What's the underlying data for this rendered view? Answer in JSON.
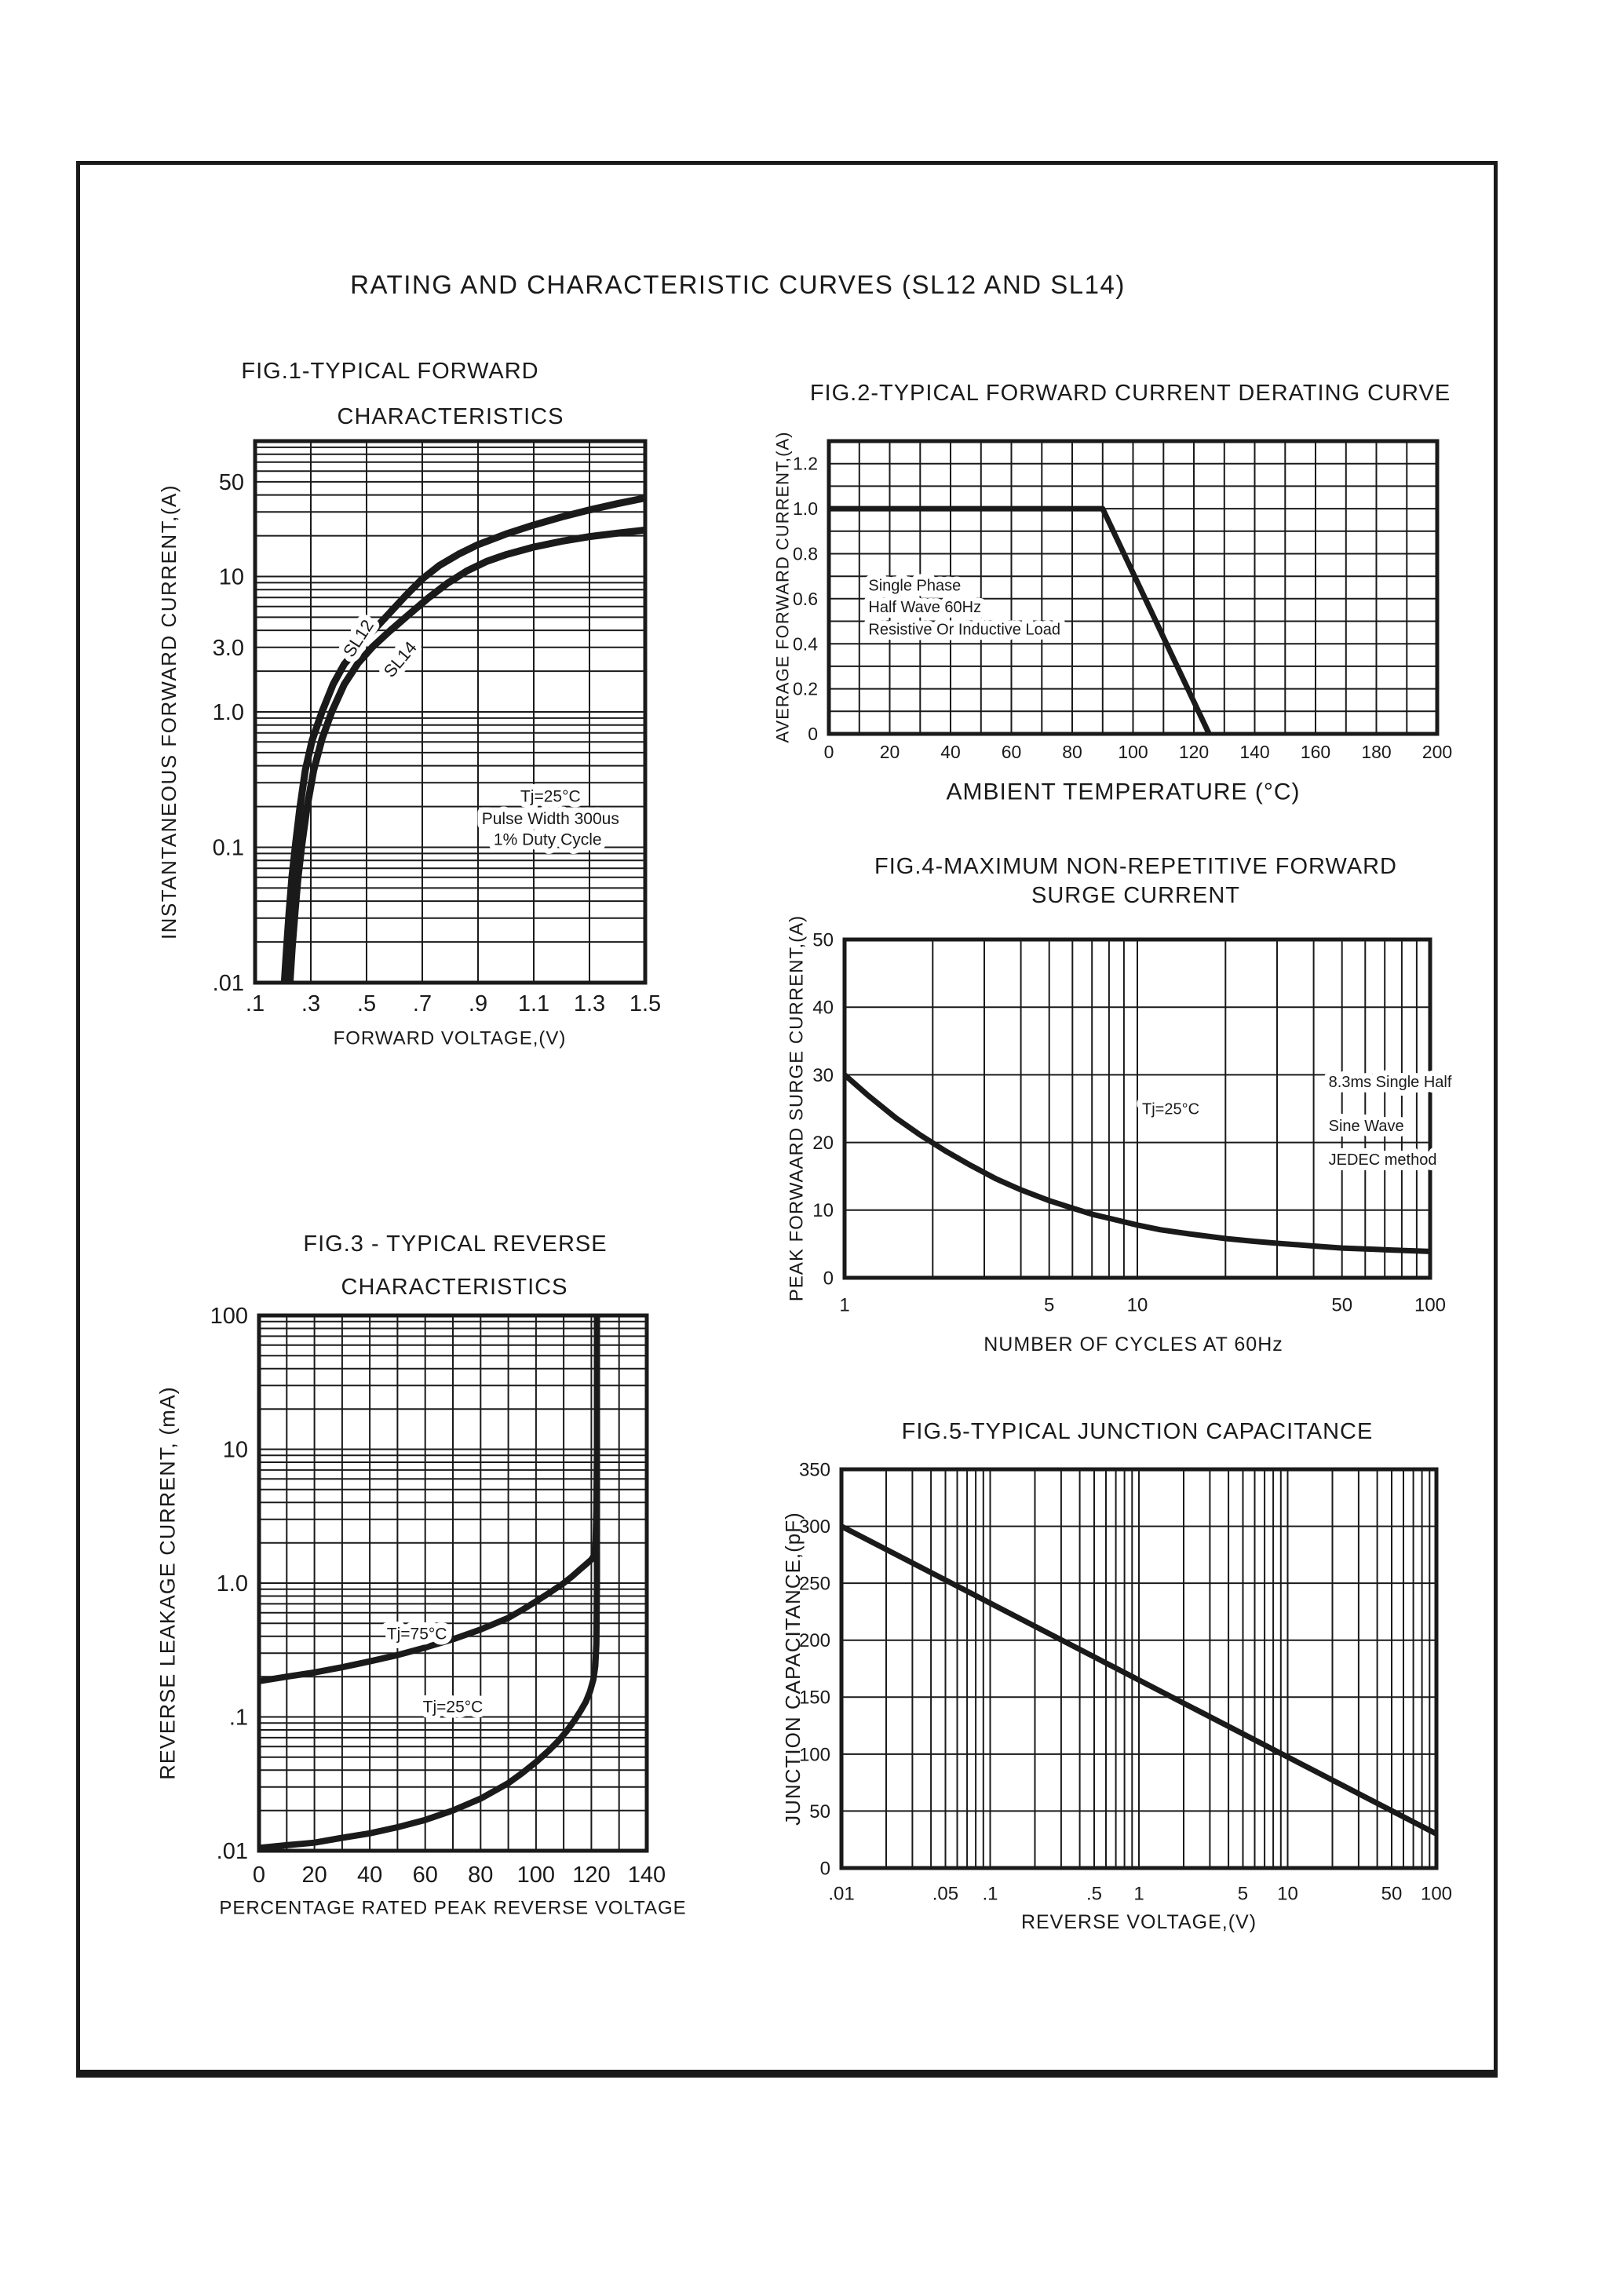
{
  "page": {
    "title": "RATING AND CHARACTERISTIC CURVES (SL12 AND SL14)"
  },
  "chart_data": [
    {
      "id": "fig1",
      "type": "line",
      "title_lines": [
        "FIG.1-TYPICAL FORWARD",
        "CHARACTERISTICS"
      ],
      "xlabel": "FORWARD VOLTAGE,(V)",
      "ylabel": "INSTANTANEOUS FORWARD CURRENT,(A)",
      "x_axis": {
        "scale": "linear",
        "min": 0.1,
        "max": 1.5,
        "grid_step": 0.2,
        "ticks": [
          {
            "v": 0.1,
            "l": ".1"
          },
          {
            "v": 0.3,
            "l": ".3"
          },
          {
            "v": 0.5,
            "l": ".5"
          },
          {
            "v": 0.7,
            "l": ".7"
          },
          {
            "v": 0.9,
            "l": ".9"
          },
          {
            "v": 1.1,
            "l": "1.1"
          },
          {
            "v": 1.3,
            "l": "1.3"
          },
          {
            "v": 1.5,
            "l": "1.5"
          }
        ]
      },
      "y_axis": {
        "scale": "log",
        "min": 0.01,
        "max": 100,
        "ticks": [
          {
            "v": 50,
            "l": "50"
          },
          {
            "v": 10,
            "l": "10"
          },
          {
            "v": 3,
            "l": "3.0"
          },
          {
            "v": 1,
            "l": "1.0"
          },
          {
            "v": 0.1,
            "l": "0.1"
          },
          {
            "v": 0.01,
            "l": ".01"
          }
        ]
      },
      "series": [
        {
          "name": "SL12",
          "points": [
            [
              0.205,
              0.01
            ],
            [
              0.213,
              0.018
            ],
            [
              0.222,
              0.033
            ],
            [
              0.232,
              0.06
            ],
            [
              0.245,
              0.105
            ],
            [
              0.26,
              0.19
            ],
            [
              0.28,
              0.37
            ],
            [
              0.305,
              0.62
            ],
            [
              0.34,
              1.0
            ],
            [
              0.38,
              1.6
            ],
            [
              0.42,
              2.25
            ],
            [
              0.47,
              3.0
            ],
            [
              0.52,
              3.9
            ],
            [
              0.58,
              5.3
            ],
            [
              0.64,
              7.2
            ],
            [
              0.7,
              9.6
            ],
            [
              0.76,
              12.0
            ],
            [
              0.83,
              14.6
            ],
            [
              0.9,
              17.2
            ],
            [
              1.0,
              20.6
            ],
            [
              1.1,
              24.0
            ],
            [
              1.2,
              27.5
            ],
            [
              1.3,
              31.0
            ],
            [
              1.4,
              34.5
            ],
            [
              1.5,
              38.0
            ]
          ]
        },
        {
          "name": "SL14",
          "points": [
            [
              0.225,
              0.01
            ],
            [
              0.233,
              0.018
            ],
            [
              0.243,
              0.033
            ],
            [
              0.254,
              0.06
            ],
            [
              0.268,
              0.105
            ],
            [
              0.285,
              0.19
            ],
            [
              0.31,
              0.37
            ],
            [
              0.34,
              0.63
            ],
            [
              0.375,
              1.0
            ],
            [
              0.42,
              1.6
            ],
            [
              0.47,
              2.3
            ],
            [
              0.52,
              3.0
            ],
            [
              0.58,
              3.9
            ],
            [
              0.65,
              5.2
            ],
            [
              0.72,
              6.9
            ],
            [
              0.79,
              8.9
            ],
            [
              0.86,
              11.0
            ],
            [
              0.93,
              12.9
            ],
            [
              1.0,
              14.5
            ],
            [
              1.1,
              16.5
            ],
            [
              1.2,
              18.2
            ],
            [
              1.3,
              19.7
            ],
            [
              1.4,
              20.9
            ],
            [
              1.5,
              22.0
            ]
          ]
        }
      ],
      "annotations": [
        {
          "text": "SL12",
          "x": 0.47,
          "y": 3.5,
          "rot": -57,
          "fs": 22
        },
        {
          "text": "SL14",
          "x": 0.62,
          "y": 2.45,
          "rot": -50,
          "fs": 22
        },
        {
          "text": "Tj=25°C",
          "x": 1.16,
          "y": 0.24
        },
        {
          "text": "Pulse Width 300us",
          "x": 1.16,
          "y": 0.163
        },
        {
          "text": "1% Duty Cycle",
          "x": 1.15,
          "y": 0.115
        }
      ]
    },
    {
      "id": "fig2",
      "type": "line",
      "title_lines": [
        "FIG.2-TYPICAL FORWARD CURRENT DERATING CURVE"
      ],
      "xlabel": "AMBIENT TEMPERATURE (°C)",
      "ylabel": "AVERAGE FORWARD CURRENT,(A)",
      "x_axis": {
        "scale": "linear",
        "min": 0,
        "max": 200,
        "grid_step": 10,
        "ticks": [
          {
            "v": 0,
            "l": "0"
          },
          {
            "v": 20,
            "l": "20"
          },
          {
            "v": 40,
            "l": "40"
          },
          {
            "v": 60,
            "l": "60"
          },
          {
            "v": 80,
            "l": "80"
          },
          {
            "v": 100,
            "l": "100"
          },
          {
            "v": 120,
            "l": "120"
          },
          {
            "v": 140,
            "l": "140"
          },
          {
            "v": 160,
            "l": "160"
          },
          {
            "v": 180,
            "l": "180"
          },
          {
            "v": 200,
            "l": "200"
          }
        ]
      },
      "y_axis": {
        "scale": "linear",
        "min": 0,
        "max": 1.3,
        "grid_step": 0.1,
        "ticks": [
          {
            "v": 1.2,
            "l": "1.2"
          },
          {
            "v": 1.0,
            "l": "1.0"
          },
          {
            "v": 0.8,
            "l": "0.8"
          },
          {
            "v": 0.6,
            "l": "0.6"
          },
          {
            "v": 0.4,
            "l": "0.4"
          },
          {
            "v": 0.2,
            "l": "0.2"
          },
          {
            "v": 0,
            "l": "0"
          }
        ]
      },
      "series": [
        {
          "name": "derating",
          "points": [
            [
              0,
              1.0
            ],
            [
              90,
              1.0
            ],
            [
              125,
              0
            ]
          ]
        }
      ],
      "annotations": [
        {
          "text": "Single Phase",
          "x": 13,
          "y": 0.66,
          "anchor": "start"
        },
        {
          "text": "Half Wave 60Hz",
          "x": 13,
          "y": 0.565,
          "anchor": "start"
        },
        {
          "text": "Resistive Or Inductive Load",
          "x": 13,
          "y": 0.465,
          "anchor": "start"
        }
      ]
    },
    {
      "id": "fig3",
      "type": "line",
      "title_lines": [
        "FIG.3 - TYPICAL REVERSE",
        "CHARACTERISTICS"
      ],
      "xlabel": "PERCENTAGE RATED PEAK REVERSE VOLTAGE",
      "ylabel": "REVERSE LEAKAGE CURRENT, (mA)",
      "x_axis": {
        "scale": "linear",
        "min": 0,
        "max": 140,
        "grid_step": 10,
        "ticks": [
          {
            "v": 0,
            "l": "0"
          },
          {
            "v": 20,
            "l": "20"
          },
          {
            "v": 40,
            "l": "40"
          },
          {
            "v": 60,
            "l": "60"
          },
          {
            "v": 80,
            "l": "80"
          },
          {
            "v": 100,
            "l": "100"
          },
          {
            "v": 120,
            "l": "120"
          },
          {
            "v": 140,
            "l": "140"
          }
        ]
      },
      "y_axis": {
        "scale": "log",
        "min": 0.01,
        "max": 100,
        "ticks": [
          {
            "v": 100,
            "l": "100"
          },
          {
            "v": 10,
            "l": "10"
          },
          {
            "v": 1,
            "l": "1.0"
          },
          {
            "v": 0.1,
            "l": ".1"
          },
          {
            "v": 0.01,
            "l": ".01"
          }
        ]
      },
      "series": [
        {
          "name": "Tj=75C",
          "points": [
            [
              0,
              0.185
            ],
            [
              10,
              0.2
            ],
            [
              20,
              0.215
            ],
            [
              30,
              0.235
            ],
            [
              40,
              0.26
            ],
            [
              50,
              0.29
            ],
            [
              60,
              0.33
            ],
            [
              70,
              0.38
            ],
            [
              80,
              0.45
            ],
            [
              90,
              0.55
            ],
            [
              95,
              0.63
            ],
            [
              100,
              0.73
            ],
            [
              105,
              0.85
            ],
            [
              110,
              1.0
            ],
            [
              113,
              1.12
            ],
            [
              116,
              1.27
            ],
            [
              118,
              1.38
            ],
            [
              120,
              1.5
            ],
            [
              121,
              1.62
            ],
            [
              121.5,
              2.0
            ],
            [
              121.8,
              3.5
            ],
            [
              122,
              10
            ],
            [
              122,
              100
            ]
          ]
        },
        {
          "name": "Tj=25C",
          "points": [
            [
              0,
              0.0105
            ],
            [
              10,
              0.011
            ],
            [
              20,
              0.0115
            ],
            [
              30,
              0.0125
            ],
            [
              40,
              0.0135
            ],
            [
              50,
              0.015
            ],
            [
              60,
              0.017
            ],
            [
              70,
              0.02
            ],
            [
              80,
              0.0245
            ],
            [
              85,
              0.028
            ],
            [
              90,
              0.032
            ],
            [
              95,
              0.038
            ],
            [
              100,
              0.046
            ],
            [
              105,
              0.057
            ],
            [
              108,
              0.066
            ],
            [
              111,
              0.078
            ],
            [
              114,
              0.095
            ],
            [
              116,
              0.11
            ],
            [
              118,
              0.13
            ],
            [
              119.5,
              0.155
            ],
            [
              120.7,
              0.19
            ],
            [
              121.4,
              0.24
            ],
            [
              121.8,
              0.35
            ],
            [
              122,
              1.0
            ],
            [
              122,
              100
            ]
          ]
        }
      ],
      "annotations": [
        {
          "text": "Tj=75°C",
          "x": 57,
          "y": 0.42
        },
        {
          "text": "Tj=25°C",
          "x": 70,
          "y": 0.12
        }
      ]
    },
    {
      "id": "fig4",
      "type": "line",
      "title_lines": [
        "FIG.4-MAXIMUM NON-REPETITIVE FORWARD",
        "SURGE CURRENT"
      ],
      "xlabel": "NUMBER OF CYCLES AT 60Hz",
      "ylabel": "PEAK FORWAARD SURGE CURRENT,(A)",
      "x_axis": {
        "scale": "log",
        "min": 1,
        "max": 100,
        "ticks": [
          {
            "v": 1,
            "l": "1"
          },
          {
            "v": 5,
            "l": "5"
          },
          {
            "v": 10,
            "l": "10"
          },
          {
            "v": 50,
            "l": "50"
          },
          {
            "v": 100,
            "l": "100"
          }
        ]
      },
      "y_axis": {
        "scale": "linear",
        "min": 0,
        "max": 50,
        "grid_step": 10,
        "ticks": [
          {
            "v": 50,
            "l": "50"
          },
          {
            "v": 40,
            "l": "40"
          },
          {
            "v": 30,
            "l": "30"
          },
          {
            "v": 20,
            "l": "20"
          },
          {
            "v": 10,
            "l": "10"
          },
          {
            "v": 0,
            "l": "0"
          }
        ]
      },
      "series": [
        {
          "name": "surge",
          "points": [
            [
              1,
              30
            ],
            [
              1.2,
              27
            ],
            [
              1.5,
              23.6
            ],
            [
              1.8,
              21.2
            ],
            [
              2.2,
              18.8
            ],
            [
              2.7,
              16.6
            ],
            [
              3.3,
              14.6
            ],
            [
              4,
              13
            ],
            [
              5,
              11.4
            ],
            [
              6,
              10.3
            ],
            [
              7,
              9.4
            ],
            [
              8,
              8.8
            ],
            [
              10,
              7.8
            ],
            [
              12,
              7.1
            ],
            [
              15,
              6.5
            ],
            [
              20,
              5.8
            ],
            [
              25,
              5.4
            ],
            [
              30,
              5.1
            ],
            [
              40,
              4.7
            ],
            [
              50,
              4.4
            ],
            [
              65,
              4.2
            ],
            [
              80,
              4.05
            ],
            [
              100,
              3.9
            ]
          ]
        }
      ],
      "annotations": [
        {
          "text": "Tj=25°C",
          "x": 13,
          "y": 25
        },
        {
          "text": "8.3ms Single Half",
          "x": 45,
          "y": 29,
          "anchor": "start"
        },
        {
          "text": "Sine Wave",
          "x": 45,
          "y": 22.5,
          "anchor": "start"
        },
        {
          "text": "JEDEC method",
          "x": 45,
          "y": 17.5,
          "anchor": "start"
        }
      ]
    },
    {
      "id": "fig5",
      "type": "line",
      "title_lines": [
        "FIG.5-TYPICAL JUNCTION CAPACITANCE"
      ],
      "xlabel": "REVERSE VOLTAGE,(V)",
      "ylabel": "JUNCTION CAPACITANCE,(pF)",
      "x_axis": {
        "scale": "log",
        "min": 0.01,
        "max": 100,
        "ticks": [
          {
            "v": 0.01,
            "l": ".01"
          },
          {
            "v": 0.05,
            "l": ".05"
          },
          {
            "v": 0.1,
            "l": ".1"
          },
          {
            "v": 0.5,
            "l": ".5"
          },
          {
            "v": 1,
            "l": "1"
          },
          {
            "v": 5,
            "l": "5"
          },
          {
            "v": 10,
            "l": "10"
          },
          {
            "v": 50,
            "l": "50"
          },
          {
            "v": 100,
            "l": "100"
          }
        ]
      },
      "y_axis": {
        "scale": "linear",
        "min": 0,
        "max": 350,
        "grid_step": 50,
        "ticks": [
          {
            "v": 350,
            "l": "350"
          },
          {
            "v": 300,
            "l": "300"
          },
          {
            "v": 250,
            "l": "250"
          },
          {
            "v": 200,
            "l": "200"
          },
          {
            "v": 150,
            "l": "150"
          },
          {
            "v": 100,
            "l": "100"
          },
          {
            "v": 50,
            "l": "50"
          },
          {
            "v": 0,
            "l": "0"
          }
        ]
      },
      "series": [
        {
          "name": "capacitance",
          "points": [
            [
              0.01,
              300
            ],
            [
              0.1,
              232.5
            ],
            [
              1,
              165
            ],
            [
              10,
              97.5
            ],
            [
              100,
              30
            ]
          ]
        }
      ],
      "annotations": []
    }
  ]
}
